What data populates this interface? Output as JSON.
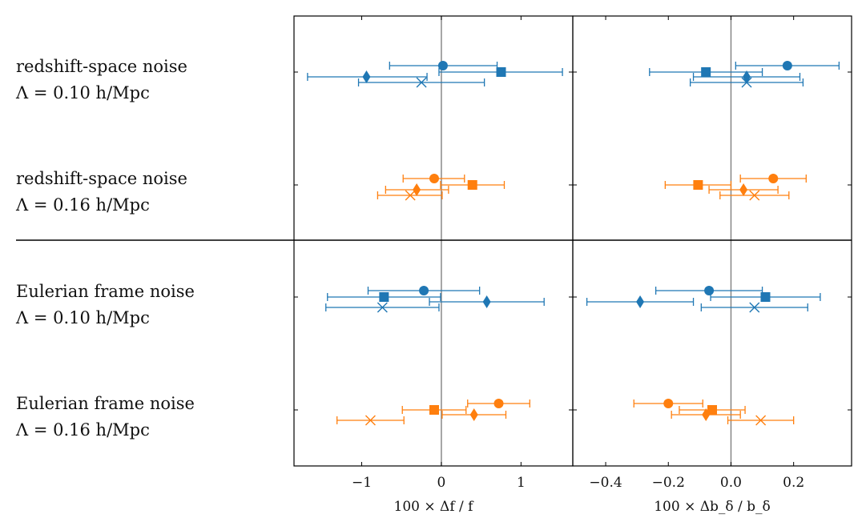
{
  "colors": {
    "blue": "#1f77b4",
    "orange": "#ff7f0e",
    "reference": "#808080"
  },
  "rows": [
    {
      "line1": "redshift-space noise",
      "line2": "Λ = 0.10 h/Mpc",
      "color": "blue"
    },
    {
      "line1": "redshift-space noise",
      "line2": "Λ = 0.16 h/Mpc",
      "color": "orange"
    },
    {
      "line1": "Eulerian frame noise",
      "line2": "Λ = 0.10 h/Mpc",
      "color": "blue"
    },
    {
      "line1": "Eulerian frame noise",
      "line2": "Λ = 0.16 h/Mpc",
      "color": "orange"
    }
  ],
  "chart_data": [
    {
      "type": "scatter",
      "name": "f",
      "xlabel": "100 × Δf / f",
      "xlim": [
        -1.85,
        1.65
      ],
      "xticks": [
        -1,
        0,
        1
      ],
      "xtick_labels": [
        "−1",
        "0",
        "1"
      ],
      "reference_x": 0,
      "series": [
        {
          "row": 0,
          "marker": "circle",
          "value": 0.02,
          "lo": -0.65,
          "hi": 0.7
        },
        {
          "row": 0,
          "marker": "square",
          "value": 0.75,
          "lo": -0.03,
          "hi": 1.52
        },
        {
          "row": 0,
          "marker": "diamond",
          "value": -0.94,
          "lo": -1.68,
          "hi": -0.18
        },
        {
          "row": 0,
          "marker": "x",
          "value": -0.25,
          "lo": -1.04,
          "hi": 0.54
        },
        {
          "row": 1,
          "marker": "circle",
          "value": -0.09,
          "lo": -0.48,
          "hi": 0.29
        },
        {
          "row": 1,
          "marker": "square",
          "value": 0.39,
          "lo": -0.01,
          "hi": 0.79
        },
        {
          "row": 1,
          "marker": "diamond",
          "value": -0.31,
          "lo": -0.7,
          "hi": 0.09
        },
        {
          "row": 1,
          "marker": "x",
          "value": -0.39,
          "lo": -0.8,
          "hi": 0.01
        },
        {
          "row": 2,
          "marker": "circle",
          "value": -0.22,
          "lo": -0.92,
          "hi": 0.48
        },
        {
          "row": 2,
          "marker": "square",
          "value": -0.72,
          "lo": -1.43,
          "hi": -0.01
        },
        {
          "row": 2,
          "marker": "diamond",
          "value": 0.57,
          "lo": -0.15,
          "hi": 1.29
        },
        {
          "row": 2,
          "marker": "x",
          "value": -0.74,
          "lo": -1.45,
          "hi": -0.03
        },
        {
          "row": 3,
          "marker": "circle",
          "value": 0.72,
          "lo": 0.33,
          "hi": 1.11
        },
        {
          "row": 3,
          "marker": "square",
          "value": -0.09,
          "lo": -0.49,
          "hi": 0.31
        },
        {
          "row": 3,
          "marker": "diamond",
          "value": 0.41,
          "lo": 0.01,
          "hi": 0.81
        },
        {
          "row": 3,
          "marker": "x",
          "value": -0.89,
          "lo": -1.31,
          "hi": -0.47
        }
      ]
    },
    {
      "type": "scatter",
      "name": "b_delta",
      "xlabel": "100 × Δb_δ / b_δ",
      "xlim": [
        -0.505,
        0.385
      ],
      "xticks": [
        -0.4,
        -0.2,
        0.0,
        0.2
      ],
      "xtick_labels": [
        "−0.4",
        "−0.2",
        "0.0",
        "0.2"
      ],
      "reference_x": 0,
      "series": [
        {
          "row": 0,
          "marker": "circle",
          "value": 0.18,
          "lo": 0.015,
          "hi": 0.345
        },
        {
          "row": 0,
          "marker": "square",
          "value": -0.08,
          "lo": -0.26,
          "hi": 0.1
        },
        {
          "row": 0,
          "marker": "diamond",
          "value": 0.05,
          "lo": -0.12,
          "hi": 0.22
        },
        {
          "row": 0,
          "marker": "x",
          "value": 0.05,
          "lo": -0.13,
          "hi": 0.23
        },
        {
          "row": 1,
          "marker": "circle",
          "value": 0.135,
          "lo": 0.03,
          "hi": 0.24
        },
        {
          "row": 1,
          "marker": "square",
          "value": -0.105,
          "lo": -0.21,
          "hi": 0.0
        },
        {
          "row": 1,
          "marker": "diamond",
          "value": 0.04,
          "lo": -0.07,
          "hi": 0.15
        },
        {
          "row": 1,
          "marker": "x",
          "value": 0.075,
          "lo": -0.035,
          "hi": 0.185
        },
        {
          "row": 2,
          "marker": "circle",
          "value": -0.07,
          "lo": -0.24,
          "hi": 0.1
        },
        {
          "row": 2,
          "marker": "square",
          "value": 0.11,
          "lo": -0.065,
          "hi": 0.285
        },
        {
          "row": 2,
          "marker": "diamond",
          "value": -0.29,
          "lo": -0.46,
          "hi": -0.12
        },
        {
          "row": 2,
          "marker": "x",
          "value": 0.075,
          "lo": -0.095,
          "hi": 0.245
        },
        {
          "row": 3,
          "marker": "circle",
          "value": -0.2,
          "lo": -0.31,
          "hi": -0.09
        },
        {
          "row": 3,
          "marker": "square",
          "value": -0.06,
          "lo": -0.165,
          "hi": 0.045
        },
        {
          "row": 3,
          "marker": "diamond",
          "value": -0.08,
          "lo": -0.19,
          "hi": 0.03
        },
        {
          "row": 3,
          "marker": "x",
          "value": 0.095,
          "lo": -0.01,
          "hi": 0.2
        }
      ]
    }
  ]
}
